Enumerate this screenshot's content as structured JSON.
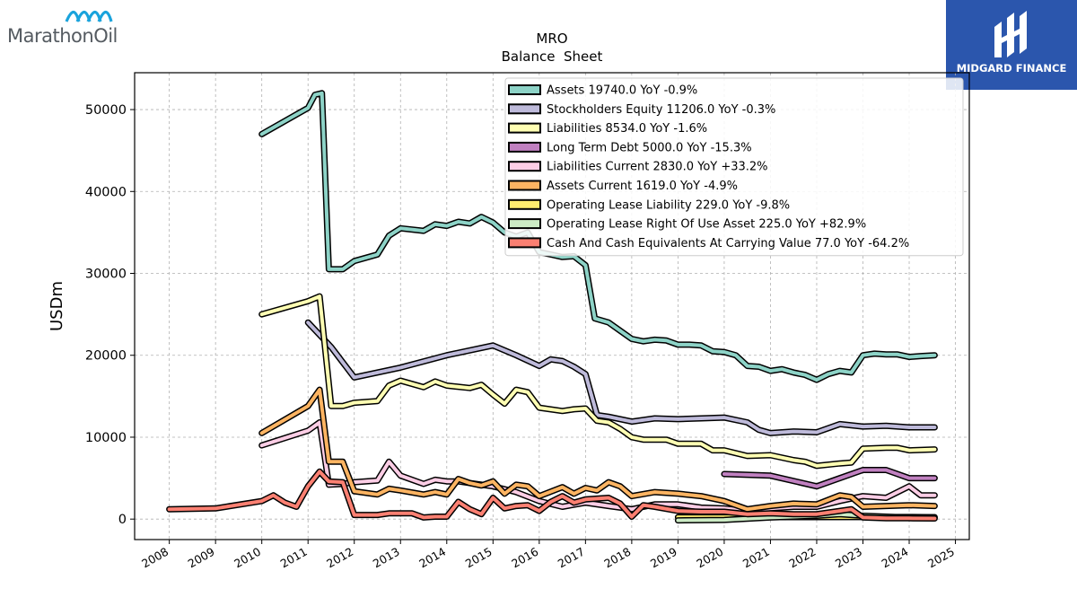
{
  "logo": {
    "brand_text": "MarathonOil",
    "icon": "marathon-wave-icon",
    "color": "#1aa3dc"
  },
  "badge": {
    "name": "MIDGARD FINANCE",
    "icon": "midgard-logo-icon",
    "color": "#2b56ad"
  },
  "chart_data": {
    "type": "line",
    "title": "MRO",
    "subtitle": "Balance  Sheet",
    "xlabel": "",
    "ylabel": "USDm",
    "xlim": [
      2007.25,
      2025.3
    ],
    "ylim": [
      -2500,
      54500
    ],
    "x_ticks": [
      "2008",
      "2009",
      "2010",
      "2011",
      "2012",
      "2013",
      "2014",
      "2015",
      "2016",
      "2017",
      "2018",
      "2019",
      "2020",
      "2021",
      "2022",
      "2023",
      "2024",
      "2025"
    ],
    "y_ticks": [
      0,
      10000,
      20000,
      30000,
      40000,
      50000
    ],
    "grid": true,
    "legend_position": "top-right",
    "series": [
      {
        "name": "Assets  19740.0 YoY -0.9%",
        "color": "#8dd3c7",
        "points": [
          [
            2010,
            47000
          ],
          [
            2011,
            50200
          ],
          [
            2011.15,
            51800
          ],
          [
            2011.3,
            52000
          ],
          [
            2011.45,
            30500
          ],
          [
            2011.75,
            30500
          ],
          [
            2012,
            31500
          ],
          [
            2012.5,
            32300
          ],
          [
            2012.75,
            34600
          ],
          [
            2013,
            35500
          ],
          [
            2013.5,
            35200
          ],
          [
            2013.75,
            36000
          ],
          [
            2014,
            35800
          ],
          [
            2014.25,
            36300
          ],
          [
            2014.5,
            36100
          ],
          [
            2014.75,
            36900
          ],
          [
            2015,
            36200
          ],
          [
            2015.25,
            35000
          ],
          [
            2015.5,
            34500
          ],
          [
            2015.75,
            35000
          ],
          [
            2016,
            32600
          ],
          [
            2016.25,
            32300
          ],
          [
            2016.5,
            32000
          ],
          [
            2016.75,
            32100
          ],
          [
            2017,
            31000
          ],
          [
            2017.2,
            24500
          ],
          [
            2017.5,
            24000
          ],
          [
            2017.75,
            23000
          ],
          [
            2018,
            22000
          ],
          [
            2018.25,
            21700
          ],
          [
            2018.5,
            21900
          ],
          [
            2018.75,
            21800
          ],
          [
            2019,
            21300
          ],
          [
            2019.25,
            21300
          ],
          [
            2019.5,
            21200
          ],
          [
            2019.75,
            20500
          ],
          [
            2020,
            20400
          ],
          [
            2020.25,
            20000
          ],
          [
            2020.5,
            18700
          ],
          [
            2020.75,
            18600
          ],
          [
            2021,
            18100
          ],
          [
            2021.25,
            18300
          ],
          [
            2021.5,
            17900
          ],
          [
            2021.75,
            17600
          ],
          [
            2022,
            17000
          ],
          [
            2022.25,
            17700
          ],
          [
            2022.5,
            18100
          ],
          [
            2022.75,
            17900
          ],
          [
            2023,
            20000
          ],
          [
            2023.25,
            20200
          ],
          [
            2023.5,
            20100
          ],
          [
            2023.75,
            20100
          ],
          [
            2024,
            19800
          ],
          [
            2024.25,
            19900
          ],
          [
            2024.55,
            20000
          ]
        ]
      },
      {
        "name": "Stockholders Equity  11206.0 YoY -0.3%",
        "color": "#bebada",
        "points": [
          [
            2011,
            24000
          ],
          [
            2011.5,
            21000
          ],
          [
            2012,
            17300
          ],
          [
            2013,
            18500
          ],
          [
            2014,
            20000
          ],
          [
            2015,
            21200
          ],
          [
            2015.5,
            20000
          ],
          [
            2016,
            18700
          ],
          [
            2016.25,
            19500
          ],
          [
            2016.5,
            19300
          ],
          [
            2016.75,
            18600
          ],
          [
            2017,
            17700
          ],
          [
            2017.25,
            12700
          ],
          [
            2017.5,
            12500
          ],
          [
            2018,
            11900
          ],
          [
            2018.5,
            12300
          ],
          [
            2019,
            12200
          ],
          [
            2019.5,
            12300
          ],
          [
            2020,
            12400
          ],
          [
            2020.5,
            11800
          ],
          [
            2020.75,
            10900
          ],
          [
            2021,
            10500
          ],
          [
            2021.5,
            10700
          ],
          [
            2022,
            10600
          ],
          [
            2022.5,
            11600
          ],
          [
            2023,
            11300
          ],
          [
            2023.5,
            11400
          ],
          [
            2024,
            11200
          ],
          [
            2024.55,
            11200
          ]
        ]
      },
      {
        "name": "Liabilities  8534.0 YoY -1.6%",
        "color": "#ffffb3",
        "points": [
          [
            2010,
            25000
          ],
          [
            2011,
            26600
          ],
          [
            2011.25,
            27200
          ],
          [
            2011.5,
            13800
          ],
          [
            2011.75,
            13800
          ],
          [
            2012,
            14200
          ],
          [
            2012.5,
            14400
          ],
          [
            2012.75,
            16300
          ],
          [
            2013,
            16900
          ],
          [
            2013.5,
            16100
          ],
          [
            2013.75,
            16800
          ],
          [
            2014,
            16300
          ],
          [
            2014.5,
            16000
          ],
          [
            2014.75,
            16400
          ],
          [
            2015,
            15200
          ],
          [
            2015.25,
            14100
          ],
          [
            2015.5,
            15800
          ],
          [
            2015.75,
            15500
          ],
          [
            2016,
            13600
          ],
          [
            2016.5,
            13200
          ],
          [
            2016.75,
            13400
          ],
          [
            2017,
            13500
          ],
          [
            2017.25,
            12000
          ],
          [
            2017.5,
            11800
          ],
          [
            2017.75,
            11000
          ],
          [
            2018,
            10000
          ],
          [
            2018.25,
            9700
          ],
          [
            2018.75,
            9700
          ],
          [
            2019,
            9200
          ],
          [
            2019.5,
            9200
          ],
          [
            2019.75,
            8400
          ],
          [
            2020,
            8400
          ],
          [
            2020.5,
            7700
          ],
          [
            2021,
            7800
          ],
          [
            2021.5,
            7200
          ],
          [
            2021.75,
            7000
          ],
          [
            2022,
            6500
          ],
          [
            2022.5,
            6800
          ],
          [
            2022.75,
            6900
          ],
          [
            2023,
            8600
          ],
          [
            2023.5,
            8700
          ],
          [
            2023.75,
            8700
          ],
          [
            2024,
            8400
          ],
          [
            2024.55,
            8500
          ]
        ]
      },
      {
        "name": "Long Term Debt  5000.0 YoY -15.3%",
        "color": "#c080c0",
        "points": [
          [
            2020,
            5500
          ],
          [
            2021,
            5300
          ],
          [
            2022,
            4000
          ],
          [
            2022.5,
            5000
          ],
          [
            2023,
            6000
          ],
          [
            2023.5,
            6000
          ],
          [
            2024,
            5000
          ],
          [
            2024.55,
            5000
          ]
        ]
      },
      {
        "name": "Liabilities Current  2830.0 YoY +33.2%",
        "color": "#fccde5",
        "points": [
          [
            2010,
            9000
          ],
          [
            2011,
            10800
          ],
          [
            2011.25,
            11800
          ],
          [
            2011.45,
            4200
          ],
          [
            2011.75,
            4300
          ],
          [
            2012,
            4500
          ],
          [
            2012.5,
            4700
          ],
          [
            2012.75,
            7000
          ],
          [
            2013,
            5300
          ],
          [
            2013.5,
            4300
          ],
          [
            2013.75,
            4800
          ],
          [
            2014,
            4600
          ],
          [
            2014.25,
            4600
          ],
          [
            2014.5,
            4400
          ],
          [
            2014.75,
            4200
          ],
          [
            2015,
            4000
          ],
          [
            2015.5,
            3300
          ],
          [
            2016,
            2200
          ],
          [
            2016.5,
            1500
          ],
          [
            2017,
            2000
          ],
          [
            2017.5,
            1600
          ],
          [
            2018,
            1200
          ],
          [
            2018.5,
            1800
          ],
          [
            2019,
            1800
          ],
          [
            2019.5,
            1400
          ],
          [
            2020,
            1300
          ],
          [
            2020.5,
            1000
          ],
          [
            2021,
            1300
          ],
          [
            2021.5,
            1500
          ],
          [
            2022,
            1500
          ],
          [
            2022.5,
            2200
          ],
          [
            2023,
            2800
          ],
          [
            2023.5,
            2600
          ],
          [
            2024,
            4000
          ],
          [
            2024.25,
            2900
          ],
          [
            2024.55,
            2900
          ]
        ]
      },
      {
        "name": "Assets Current  1619.0 YoY -4.9%",
        "color": "#fdb462",
        "points": [
          [
            2010,
            10500
          ],
          [
            2011,
            13800
          ],
          [
            2011.25,
            15800
          ],
          [
            2011.45,
            7000
          ],
          [
            2011.75,
            7000
          ],
          [
            2012,
            3400
          ],
          [
            2012.5,
            3000
          ],
          [
            2012.75,
            3700
          ],
          [
            2013,
            3500
          ],
          [
            2013.5,
            3000
          ],
          [
            2013.75,
            3300
          ],
          [
            2014,
            3000
          ],
          [
            2014.25,
            4900
          ],
          [
            2014.5,
            4400
          ],
          [
            2014.75,
            4100
          ],
          [
            2015,
            4600
          ],
          [
            2015.25,
            3100
          ],
          [
            2015.5,
            4200
          ],
          [
            2015.75,
            4000
          ],
          [
            2016,
            2800
          ],
          [
            2016.5,
            3900
          ],
          [
            2016.75,
            3100
          ],
          [
            2017,
            3800
          ],
          [
            2017.25,
            3500
          ],
          [
            2017.5,
            4500
          ],
          [
            2017.75,
            4000
          ],
          [
            2018,
            2800
          ],
          [
            2018.5,
            3300
          ],
          [
            2019,
            3100
          ],
          [
            2019.5,
            2800
          ],
          [
            2020,
            2200
          ],
          [
            2020.5,
            1200
          ],
          [
            2021,
            1600
          ],
          [
            2021.5,
            1900
          ],
          [
            2022,
            1800
          ],
          [
            2022.5,
            2900
          ],
          [
            2022.75,
            2700
          ],
          [
            2023,
            1500
          ],
          [
            2023.5,
            1600
          ],
          [
            2024,
            1700
          ],
          [
            2024.55,
            1600
          ]
        ]
      },
      {
        "name": "Operating Lease Liability  229.0 YoY -9.8%",
        "color": "#ffed6f",
        "points": [
          [
            2019,
            230
          ],
          [
            2024,
            250
          ],
          [
            2024.55,
            229
          ]
        ]
      },
      {
        "name": "Operating Lease Right Of Use Asset  225.0 YoY +82.9%",
        "color": "#ccebc5",
        "points": [
          [
            2019,
            -150
          ],
          [
            2020,
            -100
          ],
          [
            2021,
            200
          ],
          [
            2022,
            400
          ],
          [
            2022.5,
            600
          ],
          [
            2023,
            400
          ],
          [
            2023.5,
            300
          ],
          [
            2024,
            150
          ],
          [
            2024.55,
            225
          ]
        ]
      },
      {
        "name": "Cash And Cash Equivalents At Carrying Value  77.0 YoY -64.2%",
        "color": "#fb8072",
        "points": [
          [
            2008,
            1200
          ],
          [
            2009,
            1300
          ],
          [
            2010,
            2200
          ],
          [
            2010.25,
            2900
          ],
          [
            2010.5,
            2000
          ],
          [
            2010.75,
            1500
          ],
          [
            2011,
            4000
          ],
          [
            2011.25,
            5800
          ],
          [
            2011.45,
            4600
          ],
          [
            2011.75,
            4500
          ],
          [
            2012,
            500
          ],
          [
            2012.5,
            500
          ],
          [
            2012.75,
            700
          ],
          [
            2013,
            700
          ],
          [
            2013.25,
            700
          ],
          [
            2013.5,
            200
          ],
          [
            2013.75,
            300
          ],
          [
            2014,
            300
          ],
          [
            2014.25,
            2100
          ],
          [
            2014.5,
            1200
          ],
          [
            2014.75,
            600
          ],
          [
            2015,
            2600
          ],
          [
            2015.25,
            1300
          ],
          [
            2015.5,
            1600
          ],
          [
            2015.75,
            1700
          ],
          [
            2016,
            1000
          ],
          [
            2016.25,
            2100
          ],
          [
            2016.5,
            2800
          ],
          [
            2016.75,
            2000
          ],
          [
            2017,
            2400
          ],
          [
            2017.5,
            2600
          ],
          [
            2017.75,
            1900
          ],
          [
            2018,
            300
          ],
          [
            2018.25,
            1700
          ],
          [
            2018.5,
            1500
          ],
          [
            2019,
            1000
          ],
          [
            2019.5,
            900
          ],
          [
            2020,
            900
          ],
          [
            2020.5,
            600
          ],
          [
            2021,
            700
          ],
          [
            2021.5,
            600
          ],
          [
            2022,
            600
          ],
          [
            2022.5,
            1000
          ],
          [
            2022.75,
            1200
          ],
          [
            2023,
            200
          ],
          [
            2023.5,
            100
          ],
          [
            2024,
            100
          ],
          [
            2024.55,
            77
          ]
        ]
      }
    ]
  }
}
